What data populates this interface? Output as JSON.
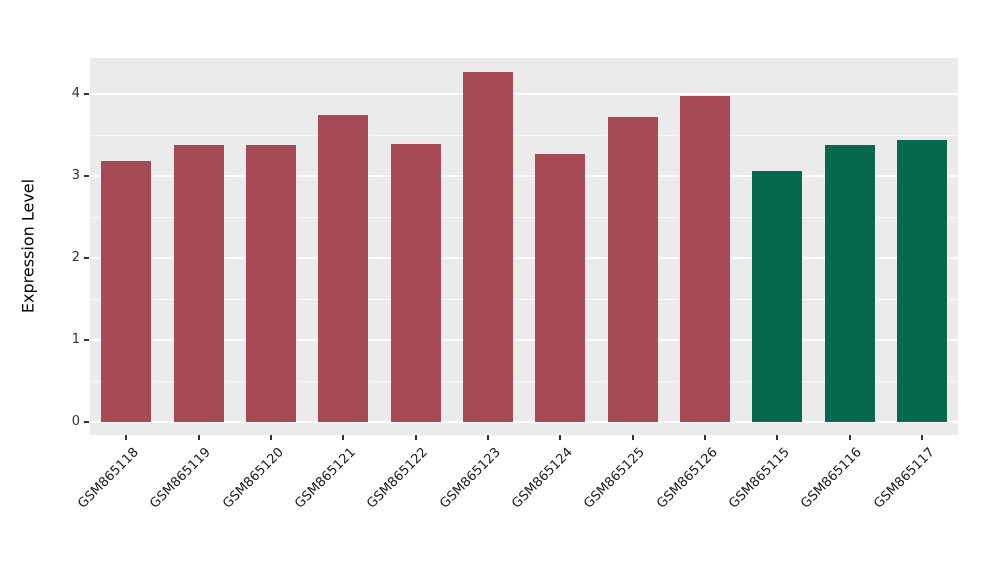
{
  "chart_data": {
    "type": "bar",
    "title": "",
    "xlabel": "",
    "ylabel": "Expression Level",
    "categories": [
      "GSM865118",
      "GSM865119",
      "GSM865120",
      "GSM865121",
      "GSM865122",
      "GSM865123",
      "GSM865124",
      "GSM865125",
      "GSM865126",
      "GSM865115",
      "GSM865116",
      "GSM865117"
    ],
    "values": [
      3.18,
      3.38,
      3.38,
      3.75,
      3.39,
      4.27,
      3.27,
      3.72,
      3.97,
      3.06,
      3.38,
      3.44
    ],
    "bar_colors": [
      "#A64A56",
      "#A64A56",
      "#A64A56",
      "#A64A56",
      "#A64A56",
      "#A64A56",
      "#A64A56",
      "#A64A56",
      "#A64A56",
      "#06684D",
      "#06684D",
      "#06684D"
    ],
    "ylim": [
      0,
      4.45
    ],
    "yticks": [
      0,
      1,
      2,
      3,
      4
    ],
    "yticks_minor": [
      0.5,
      1.5,
      2.5,
      3.5
    ],
    "grid": true,
    "legend": "none",
    "panel_background": "#EBEBEB",
    "gridline_color": "#FFFFFF"
  }
}
